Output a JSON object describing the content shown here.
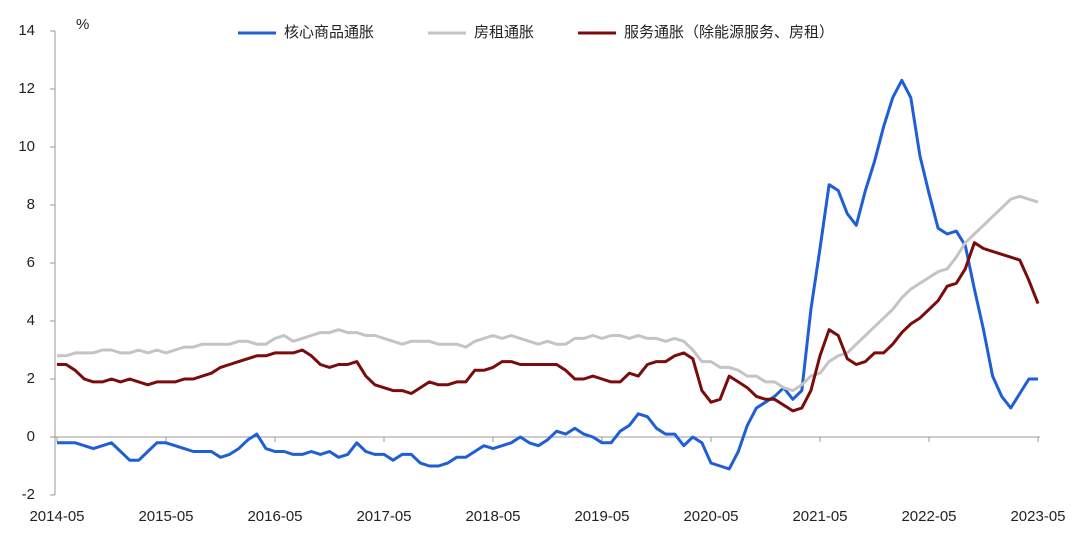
{
  "chart_data": {
    "type": "line",
    "y_label": "%",
    "categories": [
      "2014-05",
      null,
      null,
      null,
      null,
      null,
      null,
      null,
      null,
      null,
      null,
      null,
      "2015-05",
      null,
      null,
      null,
      null,
      null,
      null,
      null,
      null,
      null,
      null,
      null,
      "2016-05",
      null,
      null,
      null,
      null,
      null,
      null,
      null,
      null,
      null,
      null,
      null,
      "2017-05",
      null,
      null,
      null,
      null,
      null,
      null,
      null,
      null,
      null,
      null,
      null,
      "2018-05",
      null,
      null,
      null,
      null,
      null,
      null,
      null,
      null,
      null,
      null,
      null,
      "2019-05",
      null,
      null,
      null,
      null,
      null,
      null,
      null,
      null,
      null,
      null,
      null,
      "2020-05",
      null,
      null,
      null,
      null,
      null,
      null,
      null,
      null,
      null,
      null,
      null,
      "2021-05",
      null,
      null,
      null,
      null,
      null,
      null,
      null,
      null,
      null,
      null,
      null,
      "2022-05",
      null,
      null,
      null,
      null,
      null,
      null,
      null,
      null,
      null,
      null,
      null,
      "2023-05"
    ],
    "series": [
      {
        "name": "核心商品通胀",
        "color": "#1f5fd6",
        "values": [
          -0.2,
          -0.2,
          -0.2,
          -0.3,
          -0.4,
          -0.3,
          -0.2,
          -0.5,
          -0.8,
          -0.8,
          -0.5,
          -0.2,
          -0.2,
          -0.3,
          -0.4,
          -0.5,
          -0.5,
          -0.5,
          -0.7,
          -0.6,
          -0.4,
          -0.1,
          0.1,
          -0.4,
          -0.5,
          -0.5,
          -0.6,
          -0.6,
          -0.5,
          -0.6,
          -0.5,
          -0.7,
          -0.6,
          -0.2,
          -0.5,
          -0.6,
          -0.6,
          -0.8,
          -0.6,
          -0.6,
          -0.9,
          -1.0,
          -1.0,
          -0.9,
          -0.7,
          -0.7,
          -0.5,
          -0.3,
          -0.4,
          -0.3,
          -0.2,
          0,
          -0.2,
          -0.3,
          -0.1,
          0.2,
          0.1,
          0.3,
          0.1,
          0,
          -0.2,
          -0.2,
          0.2,
          0.4,
          0.8,
          0.7,
          0.3,
          0.1,
          0.1,
          -0.3,
          0,
          -0.2,
          -0.9,
          -1.0,
          -1.1,
          -0.5,
          0.4,
          1.0,
          1.2,
          1.4,
          1.7,
          1.3,
          1.6,
          4.4,
          6.5,
          8.7,
          8.5,
          7.7,
          7.3,
          8.5,
          9.5,
          10.7,
          11.7,
          12.3,
          11.7,
          9.7,
          8.4,
          7.2,
          7.0,
          7.1,
          6.6,
          5.1,
          3.7,
          2.1,
          1.4,
          1.0,
          1.5,
          2.0,
          2.0
        ]
      },
      {
        "name": "房租通胀",
        "color": "#c4c4c4",
        "values": [
          2.8,
          2.8,
          2.9,
          2.9,
          2.9,
          3.0,
          3.0,
          2.9,
          2.9,
          3.0,
          2.9,
          3.0,
          2.9,
          3.0,
          3.1,
          3.1,
          3.2,
          3.2,
          3.2,
          3.2,
          3.3,
          3.3,
          3.2,
          3.2,
          3.4,
          3.5,
          3.3,
          3.4,
          3.5,
          3.6,
          3.6,
          3.7,
          3.6,
          3.6,
          3.5,
          3.5,
          3.4,
          3.3,
          3.2,
          3.3,
          3.3,
          3.3,
          3.2,
          3.2,
          3.2,
          3.1,
          3.3,
          3.4,
          3.5,
          3.4,
          3.5,
          3.4,
          3.3,
          3.2,
          3.3,
          3.2,
          3.2,
          3.4,
          3.4,
          3.5,
          3.4,
          3.5,
          3.5,
          3.4,
          3.5,
          3.4,
          3.4,
          3.3,
          3.4,
          3.3,
          3.0,
          2.6,
          2.6,
          2.4,
          2.4,
          2.3,
          2.1,
          2.1,
          1.9,
          1.9,
          1.7,
          1.6,
          1.8,
          2.1,
          2.2,
          2.6,
          2.8,
          2.9,
          3.2,
          3.5,
          3.8,
          4.1,
          4.4,
          4.8,
          5.1,
          5.3,
          5.5,
          5.7,
          5.8,
          6.2,
          6.7,
          7.0,
          7.3,
          7.6,
          7.9,
          8.2,
          8.3,
          8.2,
          8.1
        ]
      },
      {
        "name": "服务通胀（除能源服务、房租）",
        "color": "#7a0c0c",
        "values": [
          2.5,
          2.5,
          2.3,
          2.0,
          1.9,
          1.9,
          2.0,
          1.9,
          2.0,
          1.9,
          1.8,
          1.9,
          1.9,
          1.9,
          2.0,
          2.0,
          2.1,
          2.2,
          2.4,
          2.5,
          2.6,
          2.7,
          2.8,
          2.8,
          2.9,
          2.9,
          2.9,
          3.0,
          2.8,
          2.5,
          2.4,
          2.5,
          2.5,
          2.6,
          2.1,
          1.8,
          1.7,
          1.6,
          1.6,
          1.5,
          1.7,
          1.9,
          1.8,
          1.8,
          1.9,
          1.9,
          2.3,
          2.3,
          2.4,
          2.6,
          2.6,
          2.5,
          2.5,
          2.5,
          2.5,
          2.5,
          2.3,
          2.0,
          2.0,
          2.1,
          2.0,
          1.9,
          1.9,
          2.2,
          2.1,
          2.5,
          2.6,
          2.6,
          2.8,
          2.9,
          2.7,
          1.6,
          1.2,
          1.3,
          2.1,
          1.9,
          1.7,
          1.4,
          1.3,
          1.3,
          1.1,
          0.9,
          1.0,
          1.6,
          2.8,
          3.7,
          3.5,
          2.7,
          2.5,
          2.6,
          2.9,
          2.9,
          3.2,
          3.6,
          3.9,
          4.1,
          4.4,
          4.7,
          5.2,
          5.3,
          5.8,
          6.7,
          6.5,
          6.4,
          6.3,
          6.2,
          6.1,
          5.4,
          4.6
        ]
      }
    ],
    "ylim": [
      -2,
      14
    ],
    "yticks": [
      -2,
      0,
      2,
      4,
      6,
      8,
      10,
      12,
      14
    ],
    "grid": false
  }
}
